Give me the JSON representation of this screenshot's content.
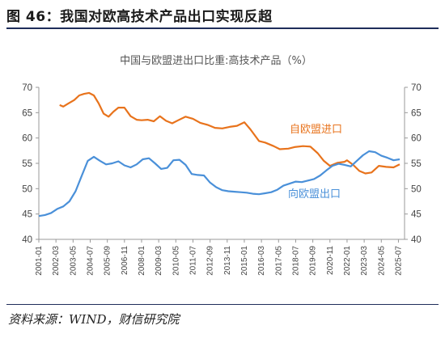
{
  "figure": {
    "title": "图 46：我国对欧高技术产品出口实现反超",
    "source": "资料来源：WIND，财信研究院"
  },
  "colors": {
    "export": "#E8731C",
    "import": "#4A90D9",
    "axis": "#999999",
    "rule": "#1f2d5a"
  },
  "chart_data": {
    "type": "line",
    "title": "中国与欧盟进出口比重:高技术产品（%）",
    "xlabel": "",
    "ylabel": "",
    "ylim": [
      40,
      70
    ],
    "y_ticks": [
      40,
      45,
      50,
      55,
      60,
      65,
      70
    ],
    "y2lim": [
      40,
      70
    ],
    "grid": false,
    "x_range": [
      "2001-01",
      "2025-12"
    ],
    "x_ticks": [
      "2001-01",
      "2002-03",
      "2003-05",
      "2004-07",
      "2005-09",
      "2006-11",
      "2008-01",
      "2009-03",
      "2010-05",
      "2011-07",
      "2012-09",
      "2013-11",
      "2015-01",
      "2016-03",
      "2017-05",
      "2018-07",
      "2019-09",
      "2020-11",
      "2022-01",
      "2023-03",
      "2024-05",
      "2025-07"
    ],
    "series": [
      {
        "name": "自欧盟进口",
        "color": "#E8731C",
        "points": [
          [
            "2002-06",
            66.5
          ],
          [
            "2002-09",
            66.2
          ],
          [
            "2003-01",
            66.8
          ],
          [
            "2003-06",
            67.5
          ],
          [
            "2003-10",
            68.4
          ],
          [
            "2004-02",
            68.7
          ],
          [
            "2004-06",
            68.9
          ],
          [
            "2004-10",
            68.4
          ],
          [
            "2005-02",
            66.8
          ],
          [
            "2005-06",
            64.8
          ],
          [
            "2005-10",
            64.2
          ],
          [
            "2006-02",
            65.2
          ],
          [
            "2006-06",
            66.0
          ],
          [
            "2006-11",
            66.0
          ],
          [
            "2007-04",
            64.3
          ],
          [
            "2007-09",
            63.6
          ],
          [
            "2008-01",
            63.5
          ],
          [
            "2008-06",
            63.6
          ],
          [
            "2008-11",
            63.3
          ],
          [
            "2009-04",
            64.3
          ],
          [
            "2009-09",
            63.4
          ],
          [
            "2010-02",
            62.9
          ],
          [
            "2010-07",
            63.5
          ],
          [
            "2011-01",
            64.2
          ],
          [
            "2011-07",
            63.8
          ],
          [
            "2012-01",
            63.0
          ],
          [
            "2012-07",
            62.6
          ],
          [
            "2013-01",
            62.0
          ],
          [
            "2013-07",
            61.9
          ],
          [
            "2014-01",
            62.2
          ],
          [
            "2014-07",
            62.4
          ],
          [
            "2015-01",
            63.1
          ],
          [
            "2015-06",
            61.7
          ],
          [
            "2016-01",
            59.4
          ],
          [
            "2016-06",
            59.1
          ],
          [
            "2017-01",
            58.4
          ],
          [
            "2017-06",
            57.8
          ],
          [
            "2018-01",
            57.9
          ],
          [
            "2018-06",
            58.2
          ],
          [
            "2019-01",
            58.4
          ],
          [
            "2019-07",
            58.3
          ],
          [
            "2020-01",
            57.0
          ],
          [
            "2020-06",
            55.5
          ],
          [
            "2020-11",
            54.5
          ],
          [
            "2021-05",
            55.1
          ],
          [
            "2021-11",
            55.3
          ],
          [
            "2022-01",
            55.6
          ],
          [
            "2022-06",
            54.7
          ],
          [
            "2022-11",
            53.5
          ],
          [
            "2023-04",
            53.0
          ],
          [
            "2023-09",
            53.2
          ],
          [
            "2024-03",
            54.5
          ],
          [
            "2024-09",
            54.3
          ],
          [
            "2025-03",
            54.2
          ],
          [
            "2025-08",
            54.8
          ]
        ]
      },
      {
        "name": "向欧盟出口",
        "color": "#4A90D9",
        "points": [
          [
            "2001-01",
            44.6
          ],
          [
            "2001-06",
            44.8
          ],
          [
            "2001-11",
            45.2
          ],
          [
            "2002-04",
            46.0
          ],
          [
            "2002-09",
            46.5
          ],
          [
            "2003-02",
            47.5
          ],
          [
            "2003-07",
            49.5
          ],
          [
            "2003-12",
            52.5
          ],
          [
            "2004-05",
            55.5
          ],
          [
            "2004-10",
            56.3
          ],
          [
            "2005-03",
            55.5
          ],
          [
            "2005-08",
            54.8
          ],
          [
            "2006-01",
            55.0
          ],
          [
            "2006-06",
            55.4
          ],
          [
            "2006-11",
            54.6
          ],
          [
            "2007-04",
            54.2
          ],
          [
            "2007-09",
            54.8
          ],
          [
            "2008-02",
            55.8
          ],
          [
            "2008-07",
            56.0
          ],
          [
            "2008-12",
            55.0
          ],
          [
            "2009-05",
            53.9
          ],
          [
            "2009-10",
            54.1
          ],
          [
            "2010-03",
            55.6
          ],
          [
            "2010-08",
            55.7
          ],
          [
            "2011-01",
            54.7
          ],
          [
            "2011-06",
            52.9
          ],
          [
            "2011-11",
            52.7
          ],
          [
            "2012-04",
            52.6
          ],
          [
            "2012-09",
            51.2
          ],
          [
            "2013-02",
            50.3
          ],
          [
            "2013-07",
            49.7
          ],
          [
            "2013-12",
            49.5
          ],
          [
            "2014-05",
            49.4
          ],
          [
            "2014-10",
            49.3
          ],
          [
            "2015-03",
            49.2
          ],
          [
            "2015-08",
            49.0
          ],
          [
            "2016-01",
            48.9
          ],
          [
            "2016-06",
            49.1
          ],
          [
            "2016-11",
            49.3
          ],
          [
            "2017-04",
            49.8
          ],
          [
            "2017-09",
            50.6
          ],
          [
            "2018-02",
            51.0
          ],
          [
            "2018-07",
            51.4
          ],
          [
            "2018-12",
            51.3
          ],
          [
            "2019-05",
            51.6
          ],
          [
            "2019-10",
            51.9
          ],
          [
            "2020-03",
            52.6
          ],
          [
            "2020-08",
            53.6
          ],
          [
            "2021-01",
            54.5
          ],
          [
            "2021-06",
            54.9
          ],
          [
            "2021-11",
            54.7
          ],
          [
            "2022-04",
            54.4
          ],
          [
            "2022-09",
            55.5
          ],
          [
            "2023-02",
            56.6
          ],
          [
            "2023-07",
            57.4
          ],
          [
            "2023-12",
            57.2
          ],
          [
            "2024-05",
            56.5
          ],
          [
            "2024-10",
            56.1
          ],
          [
            "2025-03",
            55.6
          ],
          [
            "2025-08",
            55.8
          ]
        ]
      }
    ]
  }
}
